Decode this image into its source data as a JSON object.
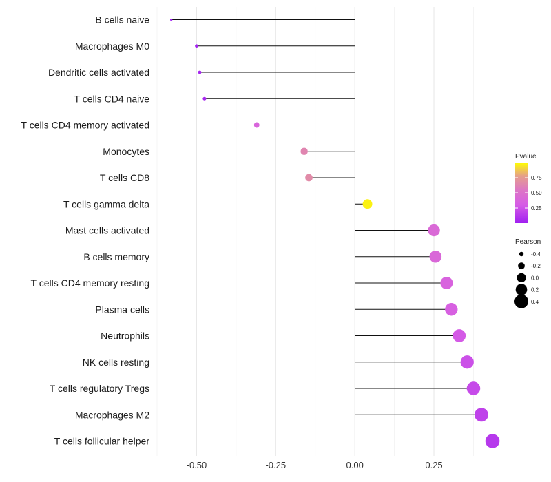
{
  "chart_data": {
    "type": "lollipop",
    "title": "",
    "xlabel": "",
    "ylabel": "",
    "xlim": [
      -0.625,
      0.485
    ],
    "x_ticks": [
      -0.5,
      -0.25,
      0.0,
      0.25
    ],
    "x_tick_labels": [
      "-0.50",
      "-0.25",
      "0.00",
      "0.25"
    ],
    "baseline": 0,
    "categories": [
      "B cells naive",
      "Macrophages M0",
      "Dendritic cells activated",
      "T cells CD4 naive",
      "T cells CD4 memory activated",
      "Monocytes",
      "T cells CD8",
      "T cells gamma delta",
      "Mast cells activated",
      "B cells memory",
      "T cells CD4 memory resting",
      "Plasma cells",
      "Neutrophils",
      "NK cells resting",
      "T cells regulatory  Tregs",
      "Macrophages M2",
      "T cells follicular helper"
    ],
    "pearson": [
      -0.58,
      -0.5,
      -0.49,
      -0.475,
      -0.31,
      -0.16,
      -0.145,
      0.04,
      0.25,
      0.255,
      0.29,
      0.305,
      0.33,
      0.355,
      0.375,
      0.4,
      0.435
    ],
    "pvalue": [
      0.005,
      0.02,
      0.03,
      0.04,
      0.38,
      0.63,
      0.66,
      0.97,
      0.42,
      0.4,
      0.36,
      0.34,
      0.29,
      0.24,
      0.21,
      0.17,
      0.12
    ],
    "legend_color": {
      "title": "Pvalue",
      "ticks": [
        0.25,
        0.5,
        0.75
      ],
      "tick_labels": [
        "0.25",
        "0.50",
        "0.75"
      ],
      "domain": [
        0.0,
        1.0
      ],
      "colors": [
        "#a020f0",
        "#d65ce6",
        "#dd77c4",
        "#e5a08a",
        "#ffff00"
      ]
    },
    "legend_size": {
      "title": "Pearson",
      "values": [
        -0.4,
        -0.2,
        0.0,
        0.2,
        0.4
      ],
      "labels": [
        "-0.4",
        "-0.2",
        "0.0",
        "0.2",
        "0.4"
      ]
    },
    "grid": true,
    "legend_position": "right"
  }
}
